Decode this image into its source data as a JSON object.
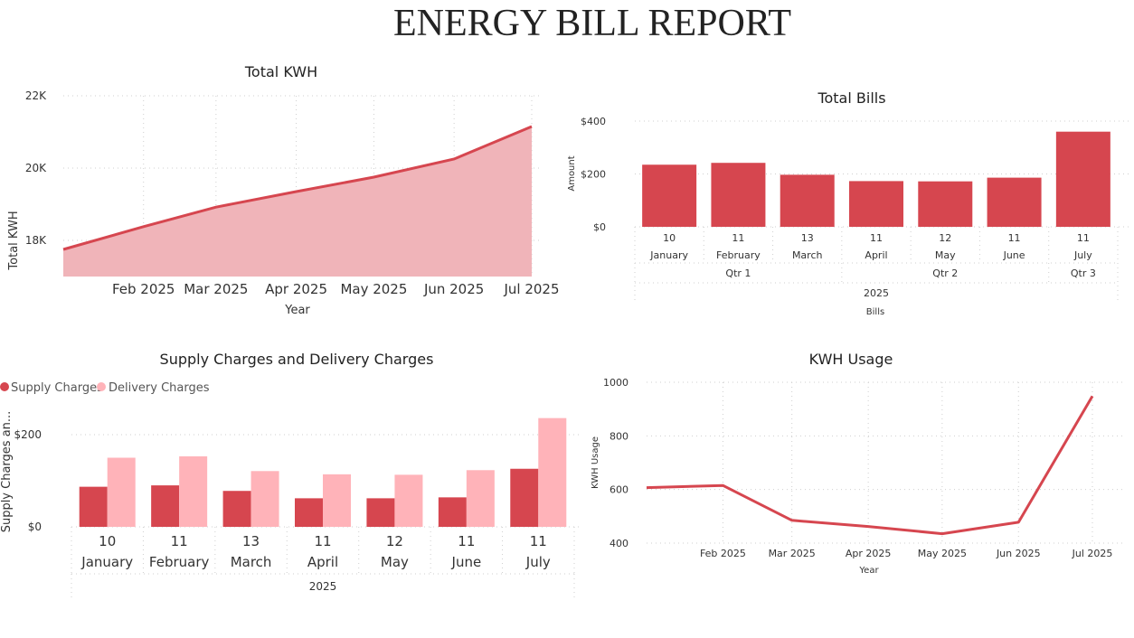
{
  "page": {
    "title": "ENERGY BILL REPORT"
  },
  "colors": {
    "primary": "#d6464f",
    "light": "#ffb3b9",
    "area": "#f0b4b9"
  },
  "chart_data": [
    {
      "id": "total-kwh",
      "type": "area",
      "title": "Total KWH",
      "xlabel": "Year",
      "ylabel": "Total KWH",
      "x": [
        "2025-01-01",
        "2025-02-01",
        "2025-03-01",
        "2025-04-01",
        "2025-05-01",
        "2025-06-01",
        "2025-07-01"
      ],
      "values": [
        17750,
        18380,
        18920,
        19350,
        19750,
        20250,
        21150
      ],
      "ylim": [
        17000,
        22000
      ],
      "yticks": [
        18000,
        20000,
        22000
      ],
      "ytick_labels": [
        "18K",
        "20K",
        "22K"
      ],
      "xtick_labels": [
        "Feb 2025",
        "Mar 2025",
        "Apr 2025",
        "May 2025",
        "Jun 2025",
        "Jul 2025"
      ],
      "grid": true
    },
    {
      "id": "total-bills",
      "type": "bar",
      "title": "Total Bills",
      "xlabel": "Bills",
      "ylabel": "Amount",
      "days": [
        "10",
        "11",
        "13",
        "11",
        "12",
        "11",
        "11"
      ],
      "categories": [
        "January",
        "February",
        "March",
        "April",
        "May",
        "June",
        "July"
      ],
      "quarters": [
        "Qtr 1",
        "Qtr 2",
        "Qtr 3"
      ],
      "year": "2025",
      "values": [
        235,
        242,
        197,
        173,
        172,
        186,
        360
      ],
      "ylim": [
        0,
        400
      ],
      "yticks": [
        0,
        200,
        400
      ],
      "ytick_labels": [
        "$0",
        "$200",
        "$400"
      ],
      "grid": true
    },
    {
      "id": "supply-delivery",
      "type": "bar",
      "title": "Supply Charges and Delivery Charges",
      "ylabel": "Supply Charges an...",
      "days": [
        "10",
        "11",
        "13",
        "11",
        "12",
        "11",
        "11"
      ],
      "categories": [
        "January",
        "February",
        "March",
        "April",
        "May",
        "June",
        "July"
      ],
      "year": "2025",
      "series": [
        {
          "name": "Supply Charges",
          "values": [
            87,
            90,
            78,
            62,
            62,
            64,
            126
          ]
        },
        {
          "name": "Delivery Charges",
          "values": [
            150,
            153,
            121,
            114,
            113,
            123,
            236
          ]
        }
      ],
      "ylim": [
        0,
        300
      ],
      "yticks": [
        0,
        200
      ],
      "ytick_labels": [
        "$0",
        "$200"
      ],
      "legend": "top-left",
      "grid": true
    },
    {
      "id": "kwh-usage",
      "type": "line",
      "title": "KWH Usage",
      "xlabel": "Year",
      "ylabel": "KWH Usage",
      "x": [
        "2025-01-01",
        "2025-02-01",
        "2025-03-01",
        "2025-04-01",
        "2025-05-01",
        "2025-06-01",
        "2025-07-01"
      ],
      "values": [
        607,
        615,
        485,
        462,
        435,
        478,
        948
      ],
      "ylim": [
        400,
        1000
      ],
      "yticks": [
        400,
        600,
        800,
        1000
      ],
      "ytick_labels": [
        "400",
        "600",
        "800",
        "1000"
      ],
      "xtick_labels": [
        "Feb 2025",
        "Mar 2025",
        "Apr 2025",
        "May 2025",
        "Jun 2025",
        "Jul 2025"
      ],
      "grid": true
    }
  ]
}
